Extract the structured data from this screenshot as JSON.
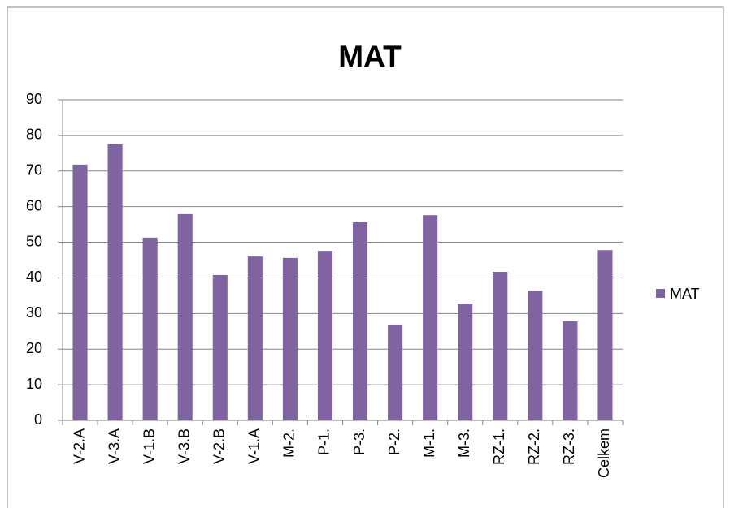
{
  "chart_data": {
    "type": "bar",
    "title": "MAT",
    "categories": [
      "V-2.A",
      "V-3.A",
      "V-1.B",
      "V-3.B",
      "V-2.B",
      "V-1.A",
      "M-2.",
      "P-1.",
      "P-3.",
      "P-2.",
      "M-1.",
      "M-3.",
      "RZ-1.",
      "RZ-2.",
      "RZ-3.",
      "Celkem"
    ],
    "series": [
      {
        "name": "MAT",
        "color": "#8064a2",
        "values": [
          71.8,
          77.5,
          51.3,
          57.9,
          40.8,
          46,
          45.6,
          47.6,
          55.6,
          26.9,
          57.6,
          32.8,
          41.7,
          36.4,
          27.8,
          47.8
        ]
      }
    ],
    "ylim": [
      0,
      90
    ],
    "yticks": [
      0,
      10,
      20,
      30,
      40,
      50,
      60,
      70,
      80,
      90
    ],
    "grid": true,
    "legend": "right"
  }
}
